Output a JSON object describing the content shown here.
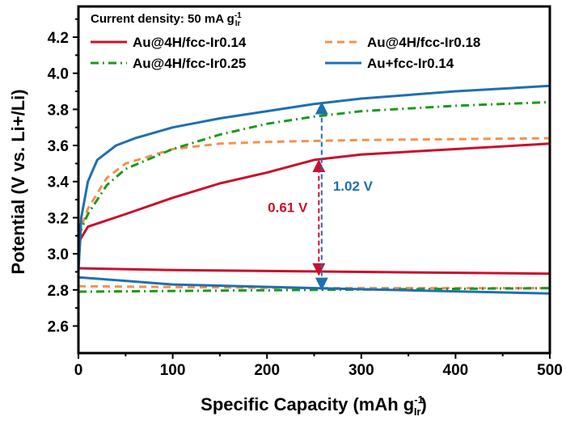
{
  "chart_data": {
    "type": "line",
    "xlabel": "Specific Capacity (mAh g",
    "xlabel_sub": "Ir",
    "xlabel_sup": "-1",
    "xlabel_end": ")",
    "ylabel": "Potential (V vs. Li+/Li)",
    "xlim": [
      0,
      500
    ],
    "ylim": [
      2.45,
      4.37
    ],
    "xticks": [
      0,
      100,
      200,
      300,
      400,
      500
    ],
    "yticks": [
      2.6,
      2.8,
      3.0,
      3.2,
      3.4,
      3.6,
      3.8,
      4.0,
      4.2
    ],
    "legend_title": "Current density: 50 mA g",
    "legend_title_sub": "Ir",
    "legend_title_sup": "-1",
    "legend_placement": "top-left",
    "series": [
      {
        "name": "Au@4H/fcc-Ir0.14",
        "color": "#c8102e",
        "dash": "solid",
        "charge": [
          [
            0,
            2.95
          ],
          [
            2,
            3.08
          ],
          [
            10,
            3.15
          ],
          [
            50,
            3.22
          ],
          [
            100,
            3.31
          ],
          [
            150,
            3.39
          ],
          [
            200,
            3.45
          ],
          [
            250,
            3.52
          ],
          [
            300,
            3.55
          ],
          [
            400,
            3.58
          ],
          [
            500,
            3.61
          ]
        ],
        "discharge": [
          [
            0,
            2.92
          ],
          [
            100,
            2.91
          ],
          [
            300,
            2.9
          ],
          [
            500,
            2.89
          ]
        ]
      },
      {
        "name": "Au@4H/fcc-Ir0.18",
        "color": "#f4914e",
        "dash": "dashed",
        "charge": [
          [
            0,
            3.1
          ],
          [
            10,
            3.25
          ],
          [
            30,
            3.42
          ],
          [
            50,
            3.5
          ],
          [
            100,
            3.58
          ],
          [
            150,
            3.61
          ],
          [
            200,
            3.62
          ],
          [
            300,
            3.63
          ],
          [
            500,
            3.64
          ]
        ],
        "discharge": [
          [
            0,
            2.82
          ],
          [
            250,
            2.81
          ],
          [
            500,
            2.81
          ]
        ]
      },
      {
        "name": "Au@4H/fcc-Ir0.25",
        "color": "#1a9a1a",
        "dash": "dashdot",
        "charge": [
          [
            0,
            3.1
          ],
          [
            10,
            3.22
          ],
          [
            30,
            3.38
          ],
          [
            50,
            3.47
          ],
          [
            100,
            3.58
          ],
          [
            150,
            3.66
          ],
          [
            200,
            3.72
          ],
          [
            250,
            3.76
          ],
          [
            300,
            3.79
          ],
          [
            400,
            3.82
          ],
          [
            500,
            3.84
          ]
        ],
        "discharge": [
          [
            0,
            2.79
          ],
          [
            250,
            2.8
          ],
          [
            500,
            2.81
          ]
        ]
      },
      {
        "name": "Au+fcc-Ir0.14",
        "color": "#1f6fb2",
        "dash": "solid",
        "charge": [
          [
            0,
            2.9
          ],
          [
            3,
            3.2
          ],
          [
            10,
            3.4
          ],
          [
            20,
            3.52
          ],
          [
            40,
            3.6
          ],
          [
            60,
            3.64
          ],
          [
            100,
            3.7
          ],
          [
            150,
            3.75
          ],
          [
            200,
            3.79
          ],
          [
            250,
            3.83
          ],
          [
            300,
            3.86
          ],
          [
            400,
            3.9
          ],
          [
            500,
            3.93
          ]
        ],
        "discharge": [
          [
            0,
            2.87
          ],
          [
            50,
            2.85
          ],
          [
            100,
            2.83
          ],
          [
            250,
            2.81
          ],
          [
            500,
            2.78
          ]
        ]
      }
    ],
    "annotations": [
      {
        "text": "0.61 V",
        "x": 255,
        "y1": 2.89,
        "y2": 3.51,
        "color": "#c8102e",
        "side": "left"
      },
      {
        "text": "1.02 V",
        "x": 258,
        "y1": 2.81,
        "y2": 3.83,
        "color": "#1f6fb2",
        "side": "right"
      }
    ]
  }
}
